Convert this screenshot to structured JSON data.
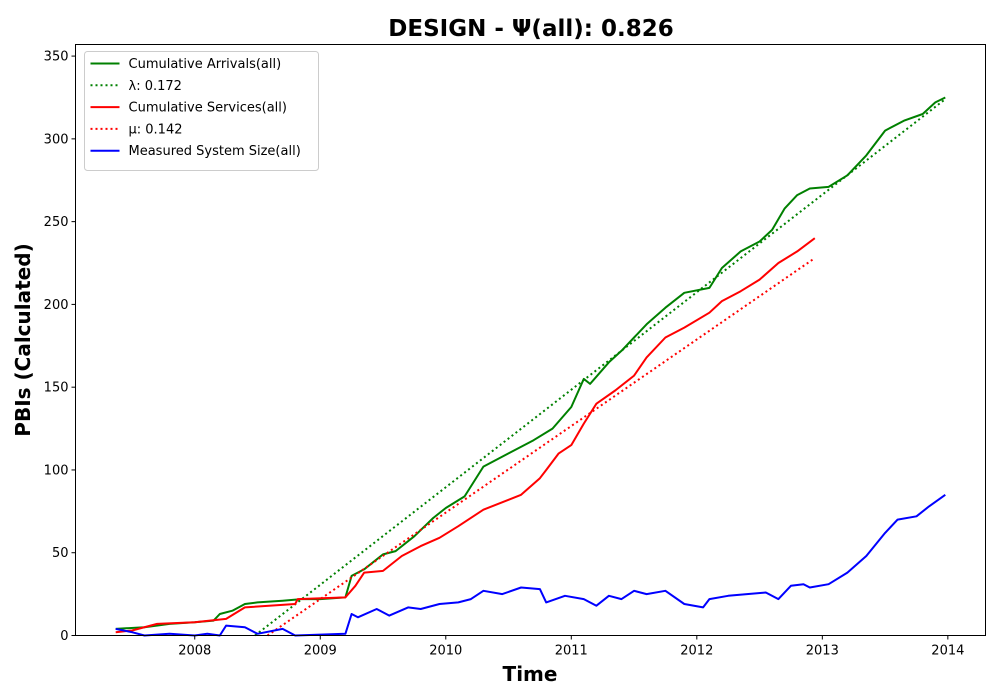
{
  "chart_data": {
    "type": "line",
    "title": "DESIGN -  Ψ(all): 0.826",
    "xlabel": "Time",
    "ylabel": "PBIs (Calculated)",
    "xlim": [
      2007.05,
      2014.3
    ],
    "ylim": [
      0,
      357
    ],
    "x_ticks": [
      2008,
      2009,
      2010,
      2011,
      2012,
      2013,
      2014
    ],
    "y_ticks": [
      0,
      50,
      100,
      150,
      200,
      250,
      300,
      350
    ],
    "legend_position": "top-left",
    "series": [
      {
        "name": "Cumulative Arrivals(all)",
        "color": "#008000",
        "style": "solid",
        "points": [
          [
            2007.37,
            4
          ],
          [
            2007.6,
            5
          ],
          [
            2007.8,
            7
          ],
          [
            2008.0,
            8
          ],
          [
            2008.15,
            9
          ],
          [
            2008.2,
            13
          ],
          [
            2008.3,
            15
          ],
          [
            2008.4,
            19
          ],
          [
            2008.5,
            20
          ],
          [
            2008.7,
            21
          ],
          [
            2008.85,
            22
          ],
          [
            2009.0,
            22
          ],
          [
            2009.2,
            23
          ],
          [
            2009.25,
            36
          ],
          [
            2009.35,
            40
          ],
          [
            2009.5,
            49
          ],
          [
            2009.6,
            51
          ],
          [
            2009.75,
            60
          ],
          [
            2009.9,
            71
          ],
          [
            2010.0,
            77
          ],
          [
            2010.15,
            84
          ],
          [
            2010.3,
            102
          ],
          [
            2010.5,
            110
          ],
          [
            2010.7,
            118
          ],
          [
            2010.85,
            125
          ],
          [
            2011.0,
            138
          ],
          [
            2011.1,
            155
          ],
          [
            2011.15,
            152
          ],
          [
            2011.3,
            165
          ],
          [
            2011.4,
            172
          ],
          [
            2011.5,
            180
          ],
          [
            2011.6,
            188
          ],
          [
            2011.75,
            198
          ],
          [
            2011.9,
            207
          ],
          [
            2012.1,
            210
          ],
          [
            2012.2,
            222
          ],
          [
            2012.35,
            232
          ],
          [
            2012.5,
            238
          ],
          [
            2012.6,
            245
          ],
          [
            2012.7,
            258
          ],
          [
            2012.8,
            266
          ],
          [
            2012.9,
            270
          ],
          [
            2013.05,
            271
          ],
          [
            2013.2,
            278
          ],
          [
            2013.35,
            290
          ],
          [
            2013.5,
            305
          ],
          [
            2013.65,
            311
          ],
          [
            2013.8,
            315
          ],
          [
            2013.9,
            322
          ],
          [
            2013.98,
            325
          ]
        ]
      },
      {
        "name": "λ: 0.172",
        "color": "#008000",
        "style": "dotted",
        "points": [
          [
            2008.48,
            0
          ],
          [
            2013.98,
            324
          ]
        ]
      },
      {
        "name": "Cumulative Services(all)",
        "color": "#ff0000",
        "style": "solid",
        "points": [
          [
            2007.37,
            2
          ],
          [
            2007.5,
            3
          ],
          [
            2007.7,
            7
          ],
          [
            2008.0,
            8
          ],
          [
            2008.25,
            10
          ],
          [
            2008.4,
            17
          ],
          [
            2008.8,
            19
          ],
          [
            2008.82,
            22
          ],
          [
            2009.2,
            23
          ],
          [
            2009.28,
            30
          ],
          [
            2009.35,
            38
          ],
          [
            2009.5,
            39
          ],
          [
            2009.65,
            48
          ],
          [
            2009.8,
            54
          ],
          [
            2009.95,
            59
          ],
          [
            2010.1,
            66
          ],
          [
            2010.3,
            76
          ],
          [
            2010.5,
            82
          ],
          [
            2010.6,
            85
          ],
          [
            2010.75,
            95
          ],
          [
            2010.8,
            100
          ],
          [
            2010.9,
            110
          ],
          [
            2011.0,
            115
          ],
          [
            2011.1,
            128
          ],
          [
            2011.2,
            140
          ],
          [
            2011.35,
            148
          ],
          [
            2011.5,
            157
          ],
          [
            2011.6,
            168
          ],
          [
            2011.75,
            180
          ],
          [
            2011.9,
            186
          ],
          [
            2012.1,
            195
          ],
          [
            2012.2,
            202
          ],
          [
            2012.35,
            208
          ],
          [
            2012.5,
            215
          ],
          [
            2012.65,
            225
          ],
          [
            2012.8,
            232
          ],
          [
            2012.94,
            240
          ]
        ]
      },
      {
        "name": "μ: 0.142",
        "color": "#ff0000",
        "style": "dotted",
        "points": [
          [
            2008.58,
            0
          ],
          [
            2012.94,
            228
          ]
        ]
      },
      {
        "name": "Measured System Size(all)",
        "color": "#0000ff",
        "style": "solid",
        "points": [
          [
            2007.37,
            4
          ],
          [
            2007.5,
            2
          ],
          [
            2007.6,
            0
          ],
          [
            2007.8,
            1
          ],
          [
            2008.0,
            0
          ],
          [
            2008.1,
            1
          ],
          [
            2008.2,
            0
          ],
          [
            2008.25,
            6
          ],
          [
            2008.4,
            5
          ],
          [
            2008.5,
            1
          ],
          [
            2008.7,
            4
          ],
          [
            2008.8,
            0
          ],
          [
            2009.2,
            1
          ],
          [
            2009.25,
            13
          ],
          [
            2009.3,
            11
          ],
          [
            2009.45,
            16
          ],
          [
            2009.55,
            12
          ],
          [
            2009.7,
            17
          ],
          [
            2009.8,
            16
          ],
          [
            2009.95,
            19
          ],
          [
            2010.1,
            20
          ],
          [
            2010.2,
            22
          ],
          [
            2010.3,
            27
          ],
          [
            2010.45,
            25
          ],
          [
            2010.6,
            29
          ],
          [
            2010.75,
            28
          ],
          [
            2010.8,
            20
          ],
          [
            2010.95,
            24
          ],
          [
            2011.1,
            22
          ],
          [
            2011.2,
            18
          ],
          [
            2011.3,
            24
          ],
          [
            2011.4,
            22
          ],
          [
            2011.5,
            27
          ],
          [
            2011.6,
            25
          ],
          [
            2011.75,
            27
          ],
          [
            2011.9,
            19
          ],
          [
            2012.05,
            17
          ],
          [
            2012.1,
            22
          ],
          [
            2012.25,
            24
          ],
          [
            2012.4,
            25
          ],
          [
            2012.55,
            26
          ],
          [
            2012.65,
            22
          ],
          [
            2012.75,
            30
          ],
          [
            2012.85,
            31
          ],
          [
            2012.9,
            29
          ],
          [
            2013.05,
            31
          ],
          [
            2013.2,
            38
          ],
          [
            2013.35,
            48
          ],
          [
            2013.5,
            62
          ],
          [
            2013.6,
            70
          ],
          [
            2013.75,
            72
          ],
          [
            2013.85,
            78
          ],
          [
            2013.98,
            85
          ]
        ]
      }
    ]
  }
}
